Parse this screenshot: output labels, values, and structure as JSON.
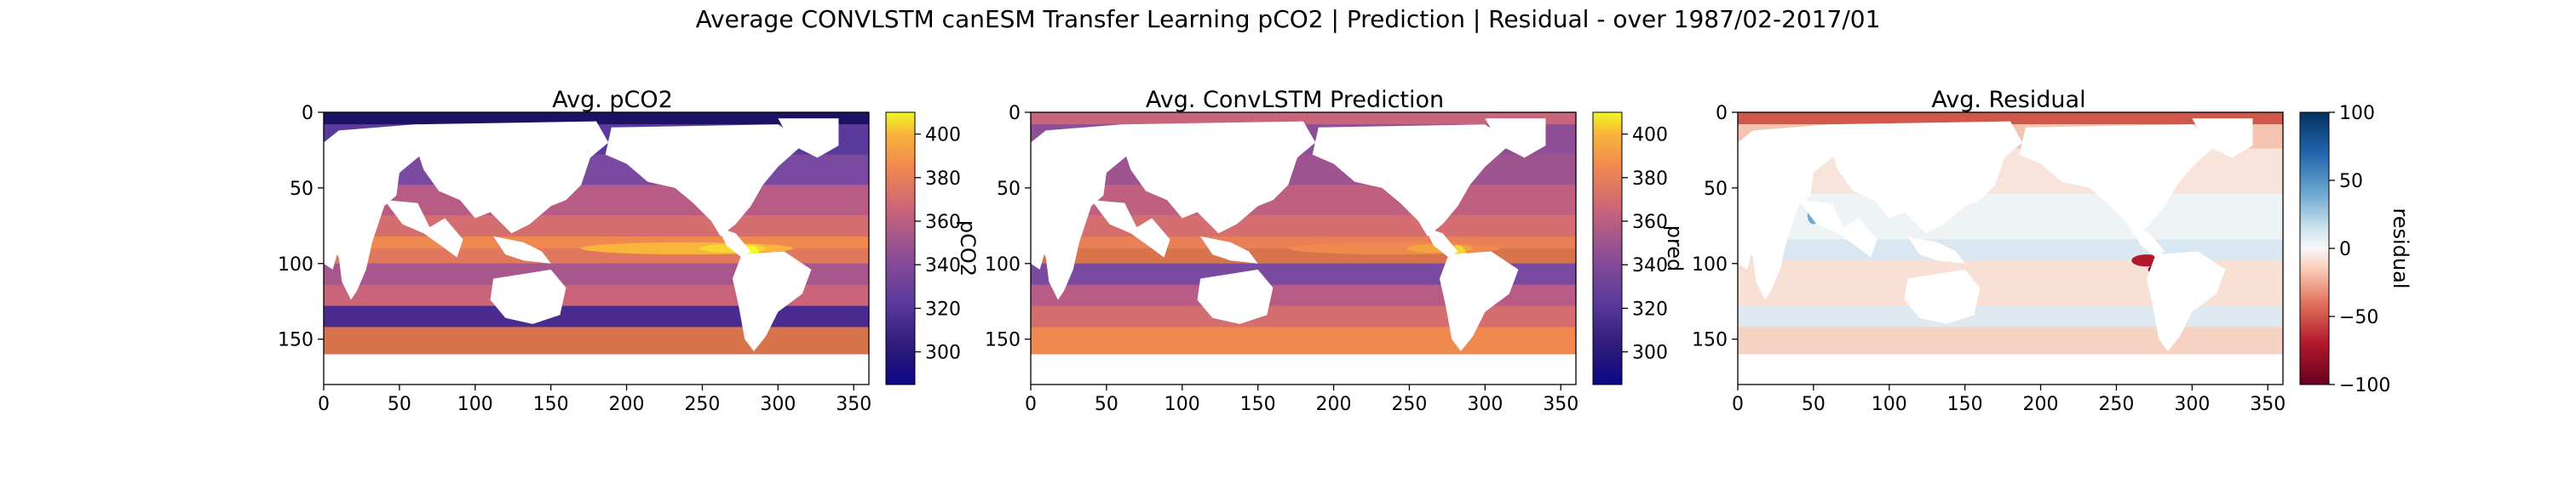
{
  "figure": {
    "title": "Average CONVLSTM canESM Transfer Learning pCO2 | Prediction | Residual - over 1987/02-2017/01"
  },
  "chart_data": [
    {
      "type": "heatmap",
      "id": "pco2",
      "title": "Avg. pCO2",
      "xlabel": "",
      "ylabel": "",
      "xlim": [
        0,
        360
      ],
      "ylim": [
        180,
        0
      ],
      "xticks": [
        "0",
        "50",
        "100",
        "150",
        "200",
        "250",
        "300",
        "350"
      ],
      "yticks": [
        "0",
        "50",
        "100",
        "150"
      ],
      "grid": false,
      "colorbar": {
        "label": "pCO2",
        "colormap": "plasma",
        "range": [
          285,
          410
        ],
        "ticks": [
          "300",
          "320",
          "340",
          "360",
          "380",
          "400"
        ]
      },
      "values_summary": {
        "equatorial_pacific_band": 395,
        "coastal_peru_max": 410,
        "southern_ocean_band": 315,
        "arctic": 295,
        "mid_latitude_typical": 350
      }
    },
    {
      "type": "heatmap",
      "id": "pred",
      "title": "Avg. ConvLSTM Prediction",
      "xlabel": "",
      "ylabel": "",
      "xlim": [
        0,
        360
      ],
      "ylim": [
        180,
        0
      ],
      "xticks": [
        "0",
        "50",
        "100",
        "150",
        "200",
        "250",
        "300",
        "350"
      ],
      "yticks": [
        "0",
        "50",
        "100",
        "150"
      ],
      "grid": false,
      "colorbar": {
        "label": "pred",
        "colormap": "plasma",
        "range": [
          285,
          410
        ],
        "ticks": [
          "300",
          "320",
          "340",
          "360",
          "380",
          "400"
        ]
      },
      "values_summary": {
        "equatorial_pacific_band": 385,
        "coastal_peru_max": 405,
        "southern_ocean_band": 355,
        "arctic": 330,
        "mid_latitude_typical": 345
      }
    },
    {
      "type": "heatmap",
      "id": "resid",
      "title": "Avg. Residual",
      "xlabel": "",
      "ylabel": "",
      "xlim": [
        0,
        360
      ],
      "ylim": [
        180,
        0
      ],
      "xticks": [
        "0",
        "50",
        "100",
        "150",
        "200",
        "250",
        "300",
        "350"
      ],
      "yticks": [
        "0",
        "50",
        "100",
        "150"
      ],
      "grid": false,
      "colorbar": {
        "label": "residual",
        "colormap": "RdBu",
        "range": [
          -100,
          100
        ],
        "ticks": [
          "100",
          "50",
          "0",
          "−50",
          "−100"
        ]
      },
      "values_summary": {
        "arctic_band": -40,
        "equatorial_typical": 8,
        "peru_coast_min": -95,
        "north_pacific_patch": 90,
        "southern_ocean": -15
      }
    }
  ]
}
